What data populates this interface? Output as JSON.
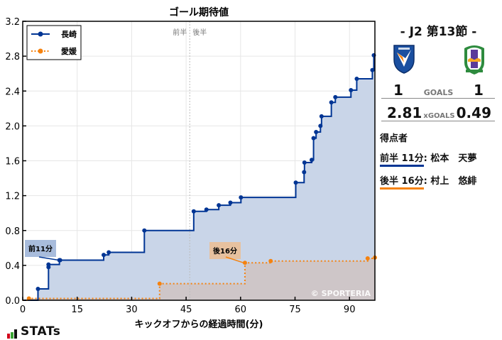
{
  "chart_data": {
    "type": "line",
    "title": "ゴール期待値",
    "xlabel": "キックオフからの経過時間(分)",
    "ylabel": "",
    "xlim": [
      0,
      97
    ],
    "ylim": [
      0,
      3.2
    ],
    "xticks": [
      0,
      15,
      30,
      45,
      60,
      75,
      90
    ],
    "yticks": [
      "0.0",
      "0.4",
      "0.8",
      "1.2",
      "1.6",
      "2.0",
      "2.4",
      "2.8",
      "3.2"
    ],
    "grid": true,
    "legend_position": "upper left",
    "halftime_marker": {
      "x": 46,
      "left_label": "前半",
      "right_label": "後半"
    },
    "series": [
      {
        "name": "長崎",
        "color": "#003594",
        "fill": "#c9d5e8",
        "style": "solid-step",
        "points": [
          [
            0,
            0
          ],
          [
            4.2,
            0.13
          ],
          [
            7.1,
            0.38
          ],
          [
            7.1,
            0.41
          ],
          [
            10.1,
            0.46
          ],
          [
            10.3,
            0.46
          ],
          [
            22.3,
            0.52
          ],
          [
            23.7,
            0.55
          ],
          [
            33.5,
            0.8
          ],
          [
            47.1,
            1.02
          ],
          [
            50.6,
            1.04
          ],
          [
            54.0,
            1.09
          ],
          [
            57.2,
            1.12
          ],
          [
            60.1,
            1.18
          ],
          [
            75.2,
            1.35
          ],
          [
            77.5,
            1.47
          ],
          [
            77.6,
            1.58
          ],
          [
            79.6,
            1.61
          ],
          [
            80.1,
            1.86
          ],
          [
            80.8,
            1.93
          ],
          [
            82.0,
            2.0
          ],
          [
            82.3,
            2.11
          ],
          [
            85.0,
            2.27
          ],
          [
            86.1,
            2.33
          ],
          [
            90.4,
            2.41
          ],
          [
            92.0,
            2.54
          ],
          [
            96.3,
            2.64
          ],
          [
            96.7,
            2.81
          ]
        ]
      },
      {
        "name": "愛媛",
        "color": "#f5820f",
        "fill": "#cfc3c2",
        "style": "dotted-step",
        "points": [
          [
            0,
            0
          ],
          [
            1.7,
            0.02
          ],
          [
            37.7,
            0.19
          ],
          [
            61.2,
            0.43
          ],
          [
            68.3,
            0.45
          ],
          [
            95.0,
            0.48
          ],
          [
            97,
            0.49
          ]
        ]
      }
    ],
    "annotations": [
      {
        "text": "前11分",
        "team": "長崎",
        "x": 10.3,
        "y": 0.46,
        "box_color": "#a8bcdc"
      },
      {
        "text": "後16分",
        "team": "愛媛",
        "x": 61.2,
        "y": 0.43,
        "box_color": "#e7c19f"
      }
    ],
    "watermark": "© SPORTERIA"
  },
  "side": {
    "round": "-  J2 第13節  -",
    "home_team": "長崎",
    "away_team": "愛媛",
    "home_goals": "1",
    "away_goals": "1",
    "goals_label": "GOALS",
    "home_xg": "2.81",
    "away_xg": "0.49",
    "xg_label": "xGOALS",
    "scorers_title": "得点者",
    "scorers": [
      {
        "time": "前半 11分",
        "name": "松本　天夢",
        "color": "#003594"
      },
      {
        "time": "後半 16分",
        "name": "村上　悠緋",
        "color": "#f5820f"
      }
    ]
  },
  "footer": {
    "brand": "STATs"
  }
}
